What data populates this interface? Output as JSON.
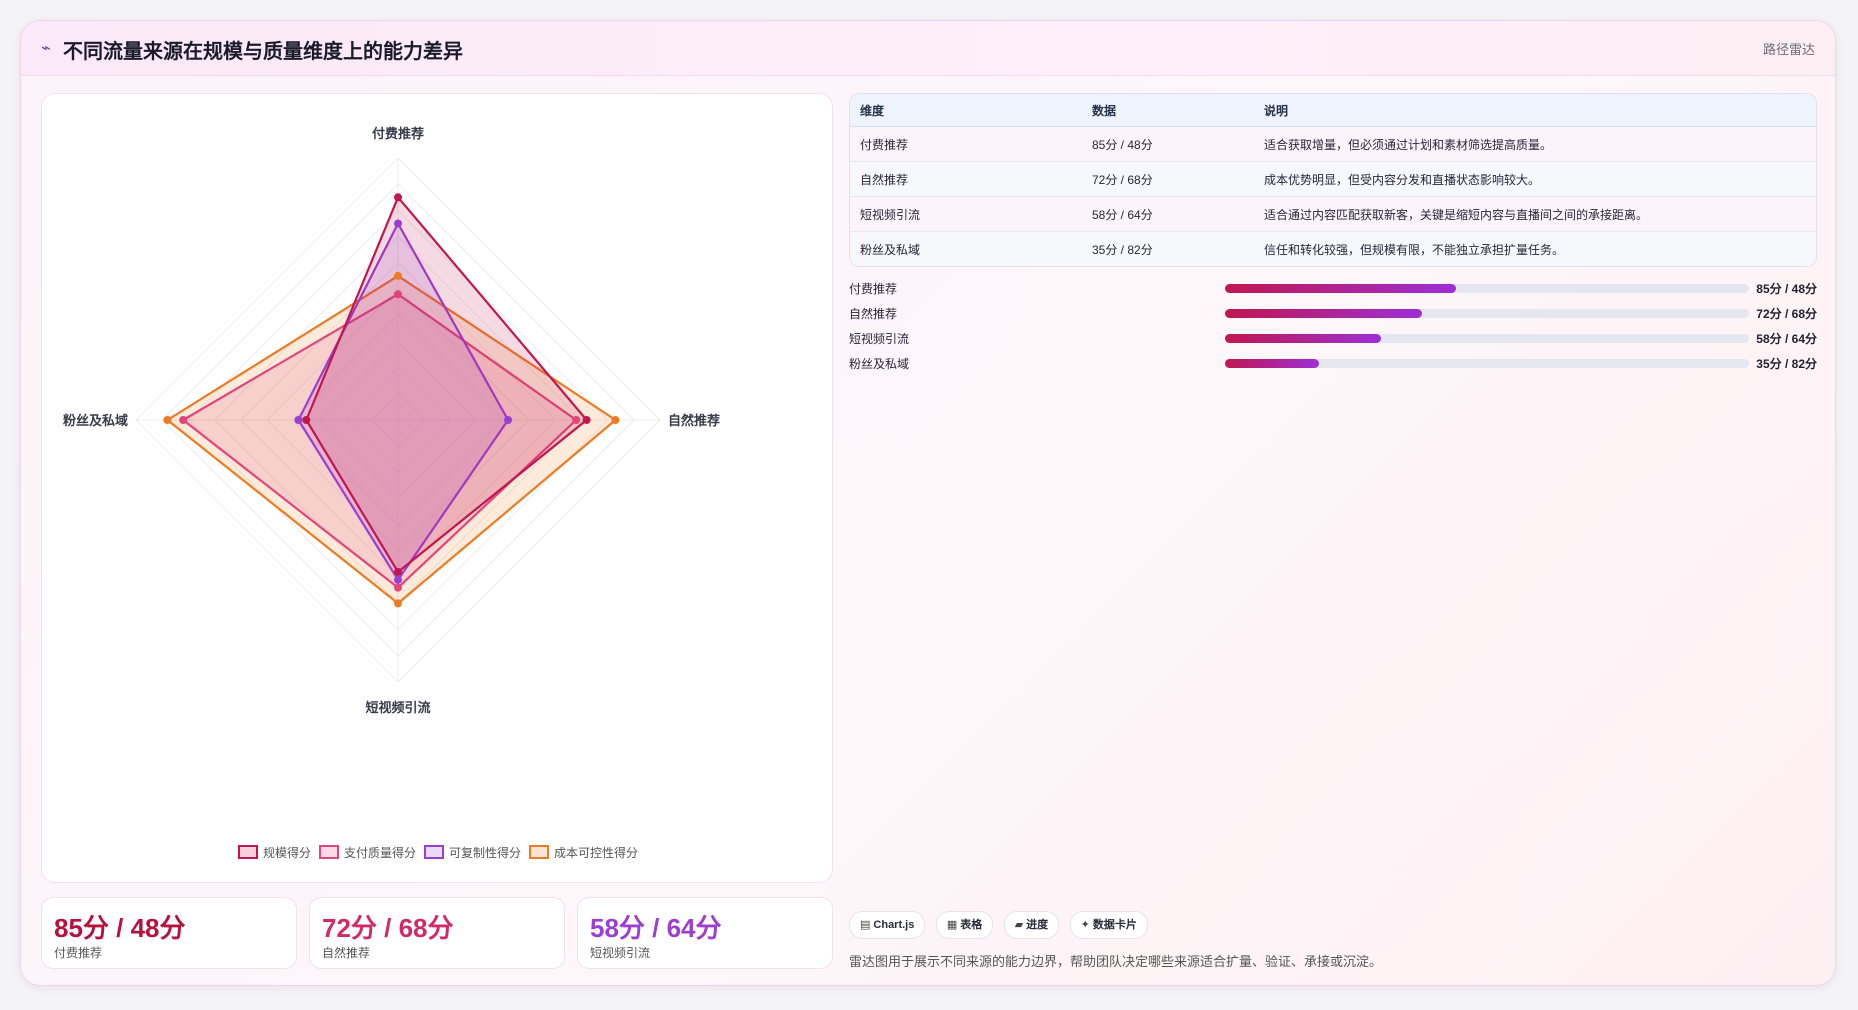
{
  "header": {
    "title": "不同流量来源在规模与质量维度上的能力差异",
    "tag": "路径雷达",
    "icon": "sparkle-icon"
  },
  "chart_data": {
    "type": "radar",
    "axes": [
      "付费推荐",
      "自然推荐",
      "短视频引流",
      "粉丝及私域"
    ],
    "rmax": 100,
    "ticks": [
      10,
      20,
      30,
      40,
      50,
      60,
      70,
      80,
      90,
      100
    ],
    "series": [
      {
        "name": "规模得分",
        "values": [
          85,
          72,
          58,
          35
        ],
        "color": "#c0174f"
      },
      {
        "name": "支付质量得分",
        "values": [
          48,
          68,
          64,
          82
        ],
        "color": "#e2457a"
      },
      {
        "name": "可复制性得分",
        "values": [
          75,
          42,
          61,
          38
        ],
        "color": "#9b3fd3"
      },
      {
        "name": "成本可控性得分",
        "values": [
          55,
          83,
          70,
          88
        ],
        "color": "#ee7a22"
      }
    ],
    "legend_position": "bottom"
  },
  "table": {
    "headers": [
      "维度",
      "数据",
      "说明"
    ],
    "rows": [
      [
        "付费推荐",
        "85分 / 48分",
        "适合获取增量，但必须通过计划和素材筛选提高质量。"
      ],
      [
        "自然推荐",
        "72分 / 68分",
        "成本优势明显，但受内容分发和直播状态影响较大。"
      ],
      [
        "短视频引流",
        "58分 / 64分",
        "适合通过内容匹配获取新客，关键是缩短内容与直播间之间的承接距离。"
      ],
      [
        "粉丝及私域",
        "35分 / 82分",
        "信任和转化较强，但规模有限，不能独立承担扩量任务。"
      ]
    ]
  },
  "progress": [
    {
      "label": "付费推荐",
      "value": "85分 / 48分",
      "fraction": 0.44
    },
    {
      "label": "自然推荐",
      "value": "72分 / 68分",
      "fraction": 0.376
    },
    {
      "label": "短视频引流",
      "value": "58分 / 64分",
      "fraction": 0.297
    },
    {
      "label": "粉丝及私域",
      "value": "35分 / 82分",
      "fraction": 0.18
    }
  ],
  "kpis": [
    {
      "value": "85分 / 48分",
      "label": "付费推荐",
      "color": "#b5123f"
    },
    {
      "value": "72分 / 68分",
      "label": "自然推荐",
      "color": "#d12a6b"
    },
    {
      "value": "58分 / 64分",
      "label": "短视频引流",
      "color": "#9b3fd3"
    }
  ],
  "chips": [
    {
      "icon": "chart-icon",
      "glyph": "▤",
      "label": "Chart.js"
    },
    {
      "icon": "table-icon",
      "glyph": "▦",
      "label": "表格"
    },
    {
      "icon": "progress-icon",
      "glyph": "▰",
      "label": "进度"
    },
    {
      "icon": "card-icon",
      "glyph": "✦",
      "label": "数据卡片"
    }
  ],
  "note": "雷达图用于展示不同来源的能力边界，帮助团队决定哪些来源适合扩量、验证、承接或沉淀。"
}
